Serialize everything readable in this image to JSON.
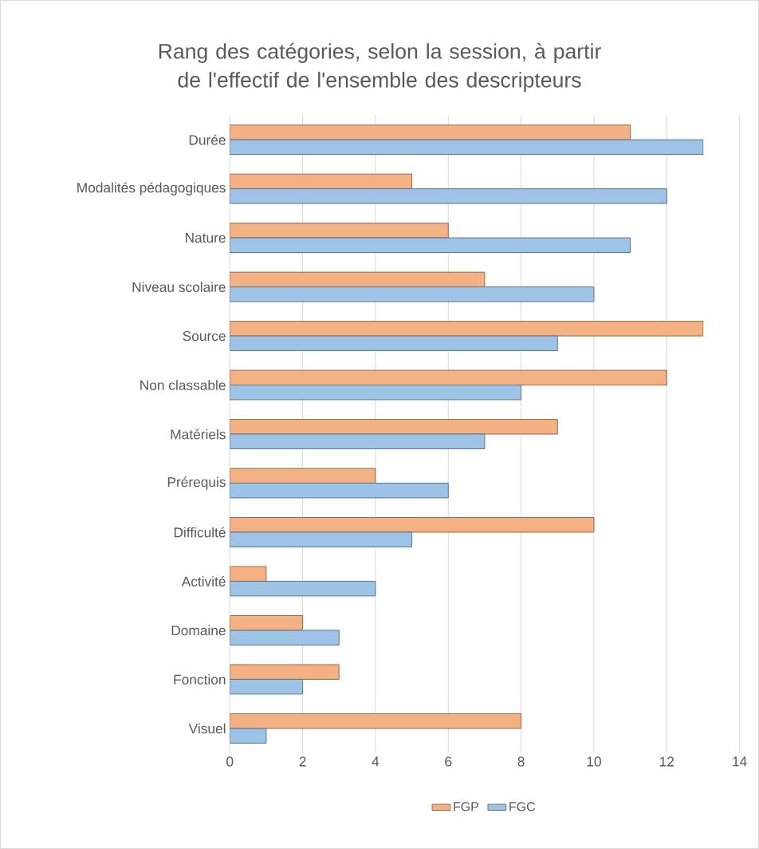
{
  "chart_data": {
    "type": "bar",
    "orientation": "horizontal",
    "title": "Rang des catégories, selon la session, à partir de l'effectif de l'ensemble des descripteurs",
    "categories": [
      "Durée",
      "Modalités pédagogiques",
      "Nature",
      "Niveau scolaire",
      "Source",
      "Non classable",
      "Matériels",
      "Prérequis",
      "Difficulté",
      "Activité",
      "Domaine",
      "Fonction",
      "Visuel"
    ],
    "series": [
      {
        "name": "FGP",
        "color": "#f4b183",
        "values": [
          11,
          5,
          6,
          7,
          13,
          12,
          9,
          4,
          10,
          1,
          2,
          3,
          8
        ]
      },
      {
        "name": "FGC",
        "color": "#9dc3e6",
        "values": [
          13,
          12,
          11,
          10,
          9,
          8,
          7,
          6,
          5,
          4,
          3,
          2,
          1
        ]
      }
    ],
    "xlim": [
      0,
      14
    ],
    "xticks": [
      0,
      2,
      4,
      6,
      8,
      10,
      12,
      14
    ],
    "grid": "x",
    "legend": "bottom"
  }
}
